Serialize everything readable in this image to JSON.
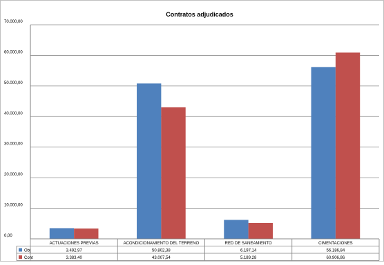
{
  "chart_data": {
    "type": "bar",
    "title": "Contratos adjudicados",
    "categories": [
      "ACTUACIONES PREVIAS",
      "ACONDICIONAMIENTO DEL TERRENO",
      "RED DE SANEAMIENTO",
      "CIMENTACIONES"
    ],
    "series": [
      {
        "name": "Obj",
        "color": "#4f81bd",
        "values": [
          3492.97,
          50802.38,
          6197.14,
          56186.84
        ],
        "labels": [
          "3.492,97",
          "50.802,38",
          "6.197,14",
          "56.186,84"
        ]
      },
      {
        "name": "Cont",
        "color": "#c0504d",
        "values": [
          3383.4,
          43007.54,
          5189.28,
          60906.86
        ],
        "labels": [
          "3.383,40",
          "43.007,54",
          "5.189,28",
          "60.906,86"
        ]
      }
    ],
    "ylim": [
      0,
      70000
    ],
    "yticks": [
      0,
      10000,
      20000,
      30000,
      40000,
      50000,
      60000,
      70000
    ],
    "ytick_labels": [
      "0,00",
      "10.000,00",
      "20.000,00",
      "30.000,00",
      "40.000,00",
      "50.000,00",
      "60.000,00",
      "70.000,00"
    ],
    "grid": true,
    "legend": "data-table"
  }
}
